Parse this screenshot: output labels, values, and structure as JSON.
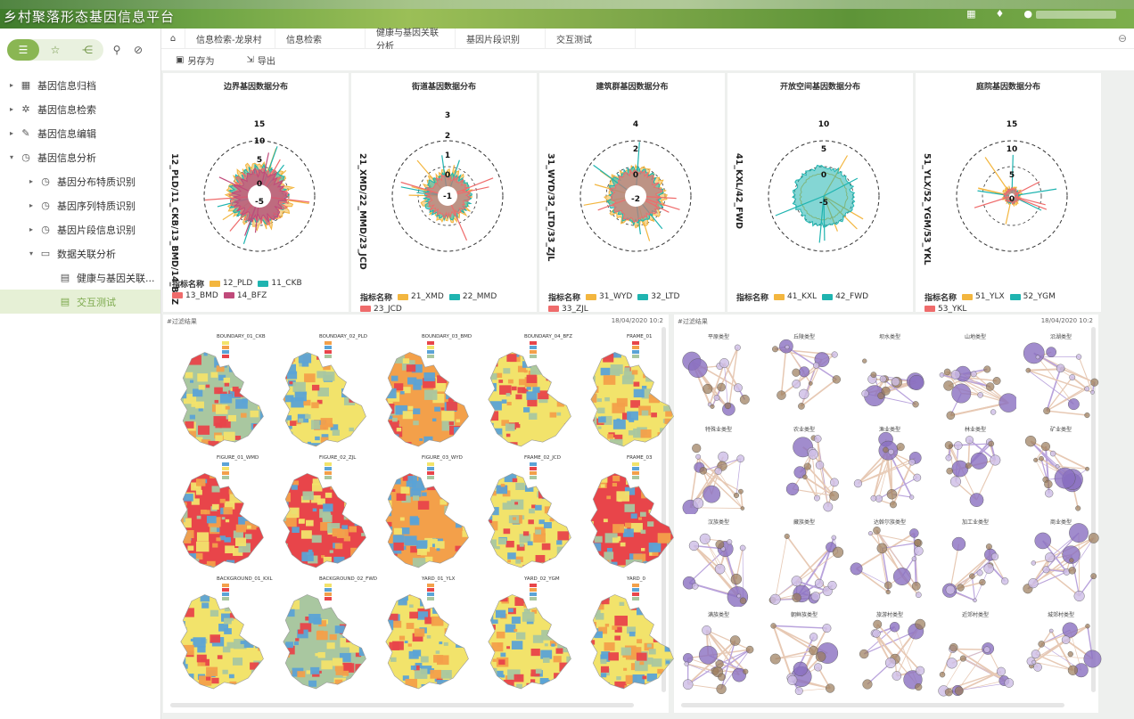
{
  "header": {
    "title": "乡村聚落形态基因信息平台",
    "icons": [
      "grid-icon",
      "bell-icon",
      "user-icon"
    ]
  },
  "sidebar": {
    "toggle_icons": [
      "list-icon",
      "star-icon",
      "share-icon"
    ],
    "tools": [
      "search-icon",
      "pin-icon"
    ],
    "tree": [
      {
        "label": "基因信息归档",
        "level": 0,
        "arrow": "▸",
        "icon": "archive-icon"
      },
      {
        "label": "基因信息检索",
        "level": 0,
        "arrow": "▸",
        "icon": "search-gear-icon"
      },
      {
        "label": "基因信息编辑",
        "level": 0,
        "arrow": "▸",
        "icon": "edit-icon"
      },
      {
        "label": "基因信息分析",
        "level": 0,
        "arrow": "▾",
        "icon": "clock-icon"
      },
      {
        "label": "基因分布特质识别",
        "level": 1,
        "arrow": "▸",
        "icon": "clock-icon"
      },
      {
        "label": "基因序列特质识别",
        "level": 1,
        "arrow": "▸",
        "icon": "clock-icon"
      },
      {
        "label": "基因片段信息识别",
        "level": 1,
        "arrow": "▸",
        "icon": "clock-icon"
      },
      {
        "label": "数据关联分析",
        "level": 1,
        "arrow": "▾",
        "icon": "folder-icon"
      },
      {
        "label": "健康与基因关联...",
        "level": 2,
        "arrow": "",
        "icon": "file-icon"
      },
      {
        "label": "交互测试",
        "level": 2,
        "arrow": "",
        "icon": "file-icon",
        "active": true
      }
    ]
  },
  "tabs": [
    "信息检索-龙泉村",
    "信息检索",
    "健康与基因关联分析",
    "基因片段识别",
    "交互测试"
  ],
  "toolbar": {
    "save_as": "另存为",
    "export": "导出"
  },
  "charts": [
    {
      "title": "边界基因数据分布",
      "ylabel": "12_PLD/11_CKB/13_BMD/14_BFZ",
      "ticks": [
        "15",
        "10",
        "5",
        "0",
        "-5"
      ],
      "legend_title": "指标名称",
      "series": [
        {
          "name": "12_PLD",
          "color": "#f3b63f"
        },
        {
          "name": "11_CKB",
          "color": "#1fb4b0"
        },
        {
          "name": "13_BMD",
          "color": "#ef6b6b"
        },
        {
          "name": "14_BFZ",
          "color": "#c04a7a"
        }
      ]
    },
    {
      "title": "街道基因数据分布",
      "ylabel": "21_XMD/22_MMD/23_JCD",
      "ticks": [
        "3",
        "2",
        "1",
        "0",
        "-1"
      ],
      "legend_title": "指标名称",
      "series": [
        {
          "name": "21_XMD",
          "color": "#f3b63f"
        },
        {
          "name": "22_MMD",
          "color": "#1fb4b0"
        },
        {
          "name": "23_JCD",
          "color": "#ef6b6b"
        }
      ]
    },
    {
      "title": "建筑群基因数据分布",
      "ylabel": "31_WYD/32_LTD/33_ZJL",
      "ticks": [
        "4",
        "2",
        "0",
        "-2"
      ],
      "legend_title": "指标名称",
      "series": [
        {
          "name": "31_WYD",
          "color": "#f3b63f"
        },
        {
          "name": "32_LTD",
          "color": "#1fb4b0"
        },
        {
          "name": "33_ZJL",
          "color": "#ef6b6b"
        }
      ]
    },
    {
      "title": "开放空间基因数据分布",
      "ylabel": "41_KXL/42_FWD",
      "ticks": [
        "10",
        "5",
        "0",
        "-5"
      ],
      "legend_title": "指标名称",
      "series": [
        {
          "name": "41_KXL",
          "color": "#f3b63f"
        },
        {
          "name": "42_FWD",
          "color": "#1fb4b0"
        }
      ]
    },
    {
      "title": "庭院基因数据分布",
      "ylabel": "51_YLX/52_YGM/53_YKL",
      "ticks": [
        "15",
        "10",
        "5",
        "0"
      ],
      "legend_title": "指标名称",
      "series": [
        {
          "name": "51_YLX",
          "color": "#f3b63f"
        },
        {
          "name": "52_YGM",
          "color": "#1fb4b0"
        },
        {
          "name": "53_YKL",
          "color": "#ef6b6b"
        }
      ]
    }
  ],
  "map_panel": {
    "header": "#过滤结果",
    "date": "18/04/2020  10:2",
    "maps": [
      {
        "title": "BOUNDARY_01_CKB",
        "palette": [
          "#a9c7a0",
          "#f2e36b",
          "#f3a04a",
          "#5ba3d6",
          "#e8454a"
        ]
      },
      {
        "title": "BOUNDARY_02_PLD",
        "palette": [
          "#f2e36b",
          "#f3a04a",
          "#5ba3d6",
          "#e8454a",
          "#a9c7a0"
        ]
      },
      {
        "title": "BOUNDARY_03_BMD",
        "palette": [
          "#f3a04a",
          "#e8454a",
          "#f2e36b",
          "#5ba3d6",
          "#a9c7a0"
        ]
      },
      {
        "title": "BOUNDARY_04_BFZ",
        "palette": [
          "#f2e36b",
          "#e8454a",
          "#5ba3d6",
          "#f3a04a",
          "#a9c7a0"
        ]
      },
      {
        "title": "FRAME_01",
        "palette": [
          "#f2e36b",
          "#e8454a",
          "#f3a04a",
          "#5ba3d6",
          "#a9c7a0"
        ]
      },
      {
        "title": "FIGURE_01_WMD",
        "palette": [
          "#e8454a",
          "#5ba3d6",
          "#f2e36b",
          "#f3a04a",
          "#a9c7a0"
        ]
      },
      {
        "title": "FIGURE_02_ZJL",
        "palette": [
          "#e8454a",
          "#f2e36b",
          "#5ba3d6",
          "#f3a04a",
          "#a9c7a0"
        ]
      },
      {
        "title": "FIGURE_03_WYD",
        "palette": [
          "#f3a04a",
          "#f2e36b",
          "#5ba3d6",
          "#e8454a",
          "#a9c7a0"
        ]
      },
      {
        "title": "FRAME_02_JCD",
        "palette": [
          "#f2e36b",
          "#5ba3d6",
          "#e8454a",
          "#f3a04a",
          "#a9c7a0"
        ]
      },
      {
        "title": "FRAME_03",
        "palette": [
          "#e8454a",
          "#f2e36b",
          "#5ba3d6",
          "#f3a04a",
          "#a9c7a0"
        ]
      },
      {
        "title": "BACKGROUND_01_KXL",
        "palette": [
          "#f2e36b",
          "#f3a04a",
          "#e8454a",
          "#5ba3d6",
          "#a9c7a0"
        ]
      },
      {
        "title": "BACKGROUND_02_FWD",
        "palette": [
          "#a9c7a0",
          "#f2e36b",
          "#5ba3d6",
          "#f3a04a",
          "#e8454a"
        ]
      },
      {
        "title": "YARD_01_YLX",
        "palette": [
          "#f2e36b",
          "#f3a04a",
          "#e8454a",
          "#5ba3d6",
          "#a9c7a0"
        ]
      },
      {
        "title": "YARD_02_YGM",
        "palette": [
          "#f2e36b",
          "#e8454a",
          "#f3a04a",
          "#5ba3d6",
          "#a9c7a0"
        ]
      },
      {
        "title": "YARD_0",
        "palette": [
          "#f2e36b",
          "#f3a04a",
          "#5ba3d6",
          "#e8454a",
          "#a9c7a0"
        ]
      }
    ]
  },
  "network_panel": {
    "header": "#过滤结果",
    "date": "18/04/2020  10:2",
    "graphs": [
      "平原类型",
      "丘陵类型",
      "坝水类型",
      "山地类型",
      "沿湖类型",
      "特殊业类型",
      "农业类型",
      "渔业类型",
      "林业类型",
      "矿业类型",
      "汉族类型",
      "藏族类型",
      "达斡尔族类型",
      "加工业类型",
      "商业类型",
      "满族类型",
      "朝鲜族类型",
      "旅游村类型",
      "近郊村类型",
      "城郊村类型"
    ]
  }
}
